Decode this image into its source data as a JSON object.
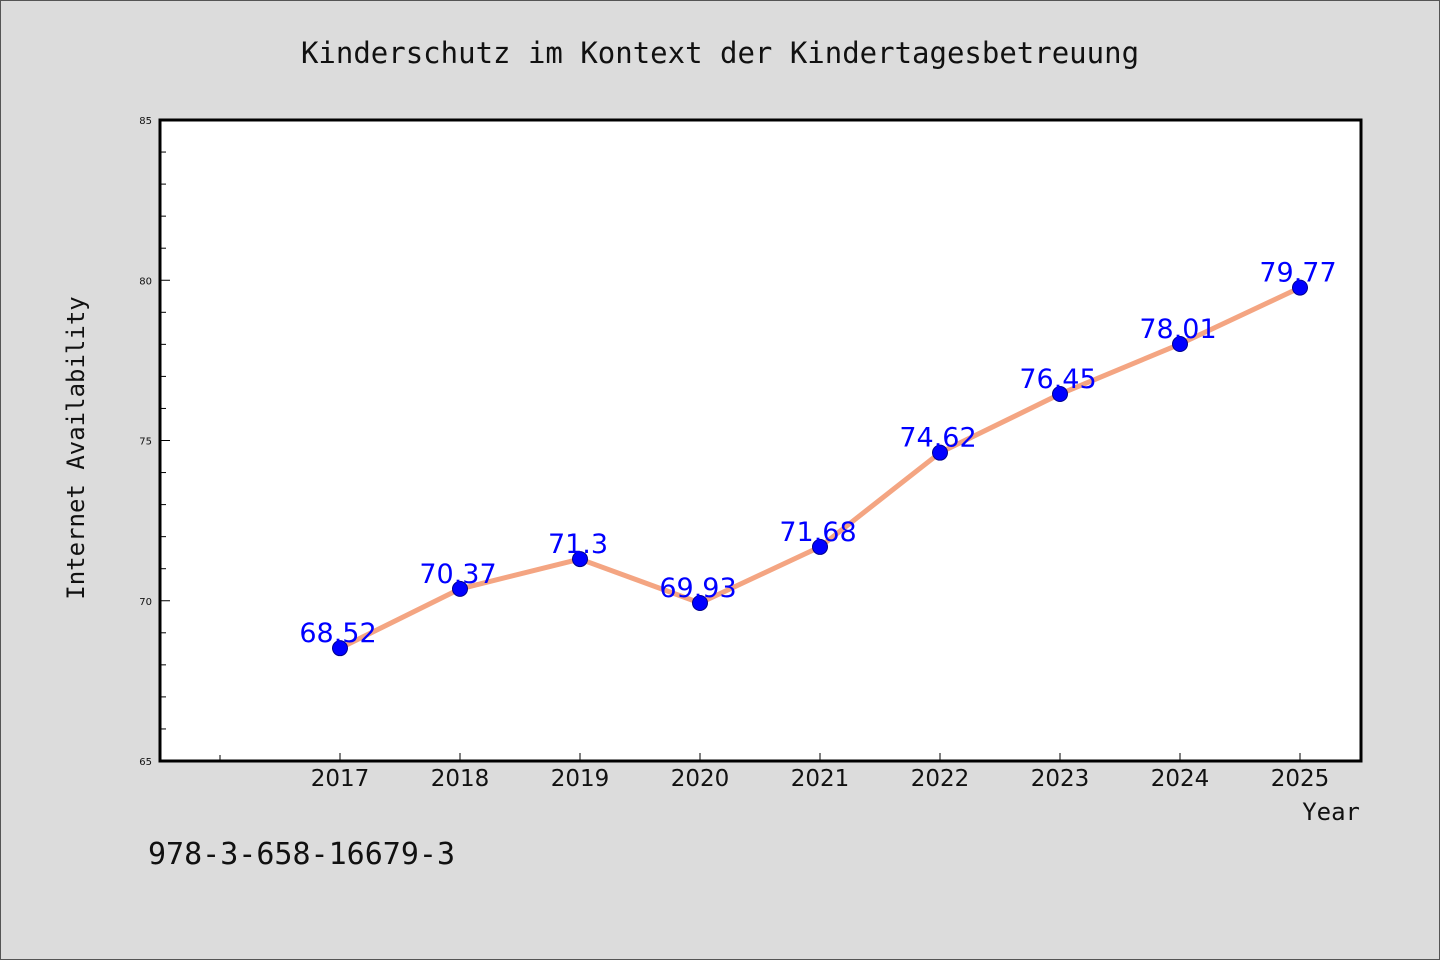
{
  "footnote": "978-3-658-16679-3",
  "colors": {
    "background": "#dcdcdc",
    "plot_background": "#ffffff",
    "line": "#f4a582",
    "marker": "#0000ff",
    "data_label": "#0000ff"
  },
  "chart_data": {
    "type": "line",
    "title": "Kinderschutz im Kontext der Kindertagesbetreuung",
    "xlabel": "Year",
    "ylabel": "Internet Availability",
    "categories": [
      "2017",
      "2018",
      "2019",
      "2020",
      "2021",
      "2022",
      "2023",
      "2024",
      "2025"
    ],
    "series": [
      {
        "values": [
          68.52,
          70.37,
          71.3,
          69.93,
          71.68,
          74.62,
          76.45,
          78.01,
          79.77
        ],
        "labels": [
          "68.52",
          "70.37",
          "71.3",
          "69.93",
          "71.68",
          "74.62",
          "76.45",
          "78.01",
          "79.77"
        ]
      }
    ],
    "ylim": [
      65,
      85
    ],
    "yticks": [
      "65",
      "70",
      "75",
      "80",
      "85"
    ],
    "grid": false,
    "legend": "none"
  }
}
